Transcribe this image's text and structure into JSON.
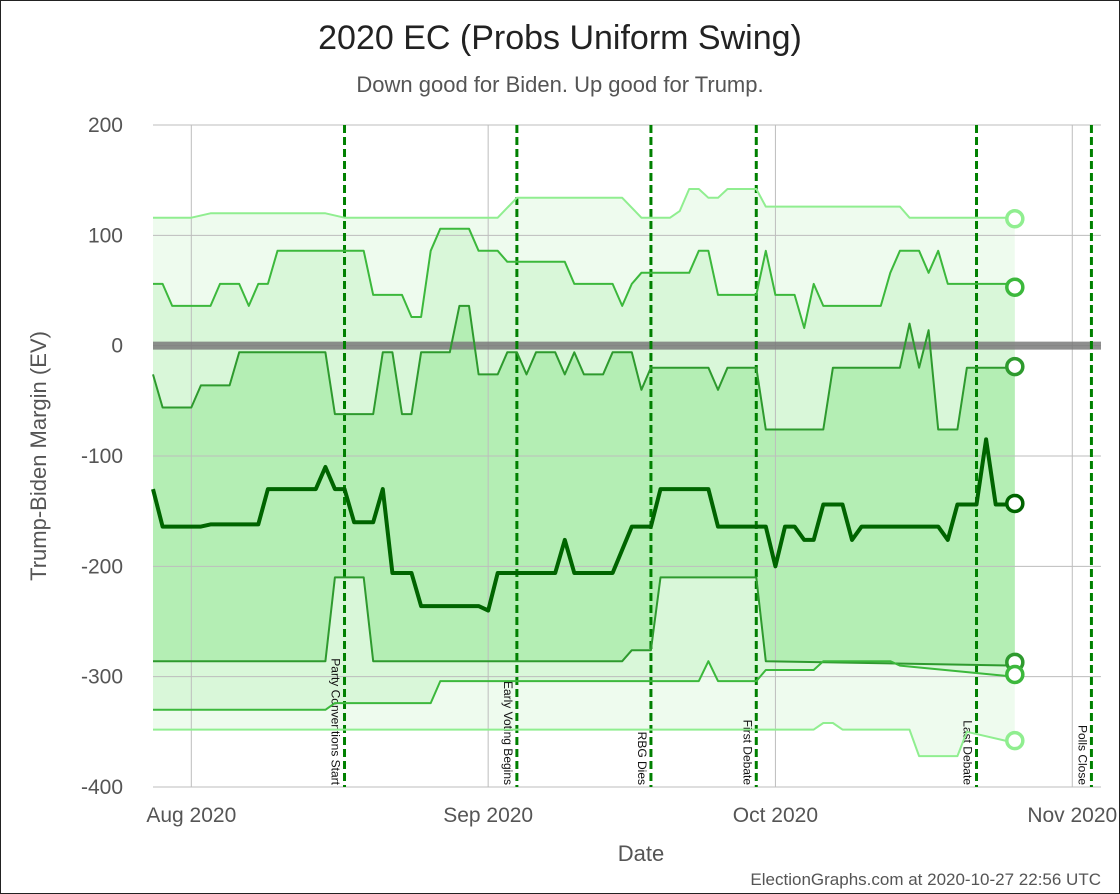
{
  "chart_data": {
    "type": "line",
    "title": "2020 EC (Probs Uniform Swing)",
    "subtitle": "Down good for Biden. Up good for Trump.",
    "xlabel": "Date",
    "ylabel": "Trump-Biden Margin (EV)",
    "xlim": [
      "2020-07-28",
      "2020-11-04"
    ],
    "ylim": [
      -400,
      200
    ],
    "x_ticks": [
      {
        "date": "2020-08-01",
        "label": "Aug 2020"
      },
      {
        "date": "2020-09-01",
        "label": "Sep 2020"
      },
      {
        "date": "2020-10-01",
        "label": "Oct 2020"
      },
      {
        "date": "2020-11-01",
        "label": "Nov 2020"
      }
    ],
    "y_ticks": [
      200,
      100,
      0,
      -100,
      -200,
      -300,
      -400
    ],
    "grid": true,
    "zero_line": 0,
    "events": [
      {
        "date": "2020-08-17",
        "label": "Party Conventions Start"
      },
      {
        "date": "2020-09-04",
        "label": "Early Voting Begins"
      },
      {
        "date": "2020-09-18",
        "label": "RBG Dies"
      },
      {
        "date": "2020-09-29",
        "label": "First Debate"
      },
      {
        "date": "2020-10-22",
        "label": "Last Debate"
      },
      {
        "date": "2020-11-03",
        "label": "Polls Close"
      }
    ],
    "series": [
      {
        "key": "max",
        "color": "#90ee90",
        "points": [
          [
            "2020-07-28",
            116
          ],
          [
            "2020-08-01",
            116
          ],
          [
            "2020-08-03",
            120
          ],
          [
            "2020-08-15",
            120
          ],
          [
            "2020-08-17",
            116
          ],
          [
            "2020-09-02",
            116
          ],
          [
            "2020-09-04",
            134
          ],
          [
            "2020-09-15",
            134
          ],
          [
            "2020-09-17",
            116
          ],
          [
            "2020-09-20",
            116
          ],
          [
            "2020-09-21",
            122
          ],
          [
            "2020-09-22",
            142
          ],
          [
            "2020-09-23",
            142
          ],
          [
            "2020-09-24",
            134
          ],
          [
            "2020-09-25",
            134
          ],
          [
            "2020-09-26",
            142
          ],
          [
            "2020-09-29",
            142
          ],
          [
            "2020-09-30",
            126
          ],
          [
            "2020-10-14",
            126
          ],
          [
            "2020-10-15",
            116
          ],
          [
            "2020-10-26",
            116
          ]
        ]
      },
      {
        "key": "upper",
        "color": "#3cb83c",
        "points": [
          [
            "2020-07-28",
            56
          ],
          [
            "2020-07-29",
            56
          ],
          [
            "2020-07-30",
            36
          ],
          [
            "2020-08-03",
            36
          ],
          [
            "2020-08-04",
            56
          ],
          [
            "2020-08-06",
            56
          ],
          [
            "2020-08-07",
            36
          ],
          [
            "2020-08-08",
            56
          ],
          [
            "2020-08-09",
            56
          ],
          [
            "2020-08-10",
            86
          ],
          [
            "2020-08-19",
            86
          ],
          [
            "2020-08-20",
            46
          ],
          [
            "2020-08-23",
            46
          ],
          [
            "2020-08-24",
            26
          ],
          [
            "2020-08-25",
            26
          ],
          [
            "2020-08-26",
            86
          ],
          [
            "2020-08-27",
            106
          ],
          [
            "2020-08-30",
            106
          ],
          [
            "2020-08-31",
            86
          ],
          [
            "2020-09-02",
            86
          ],
          [
            "2020-09-03",
            76
          ],
          [
            "2020-09-09",
            76
          ],
          [
            "2020-09-10",
            56
          ],
          [
            "2020-09-14",
            56
          ],
          [
            "2020-09-15",
            36
          ],
          [
            "2020-09-16",
            56
          ],
          [
            "2020-09-17",
            66
          ],
          [
            "2020-09-22",
            66
          ],
          [
            "2020-09-23",
            86
          ],
          [
            "2020-09-24",
            86
          ],
          [
            "2020-09-25",
            46
          ],
          [
            "2020-09-29",
            46
          ],
          [
            "2020-09-30",
            86
          ],
          [
            "2020-10-01",
            46
          ],
          [
            "2020-10-03",
            46
          ],
          [
            "2020-10-04",
            16
          ],
          [
            "2020-10-05",
            56
          ],
          [
            "2020-10-06",
            36
          ],
          [
            "2020-10-12",
            36
          ],
          [
            "2020-10-13",
            66
          ],
          [
            "2020-10-14",
            86
          ],
          [
            "2020-10-16",
            86
          ],
          [
            "2020-10-17",
            66
          ],
          [
            "2020-10-18",
            86
          ],
          [
            "2020-10-19",
            56
          ],
          [
            "2020-10-26",
            56
          ]
        ]
      },
      {
        "key": "center",
        "color": "#2e9a2e",
        "points": [
          [
            "2020-07-28",
            -26
          ],
          [
            "2020-07-29",
            -56
          ],
          [
            "2020-08-01",
            -56
          ],
          [
            "2020-08-02",
            -36
          ],
          [
            "2020-08-05",
            -36
          ],
          [
            "2020-08-06",
            -6
          ],
          [
            "2020-08-15",
            -6
          ],
          [
            "2020-08-16",
            -62
          ],
          [
            "2020-08-20",
            -62
          ],
          [
            "2020-08-21",
            -6
          ],
          [
            "2020-08-22",
            -6
          ],
          [
            "2020-08-23",
            -62
          ],
          [
            "2020-08-24",
            -62
          ],
          [
            "2020-08-25",
            -6
          ],
          [
            "2020-08-28",
            -6
          ],
          [
            "2020-08-29",
            36
          ],
          [
            "2020-08-30",
            36
          ],
          [
            "2020-08-31",
            -26
          ],
          [
            "2020-09-02",
            -26
          ],
          [
            "2020-09-03",
            -6
          ],
          [
            "2020-09-04",
            -6
          ],
          [
            "2020-09-05",
            -26
          ],
          [
            "2020-09-06",
            -6
          ],
          [
            "2020-09-08",
            -6
          ],
          [
            "2020-09-09",
            -26
          ],
          [
            "2020-09-10",
            -6
          ],
          [
            "2020-09-11",
            -26
          ],
          [
            "2020-09-13",
            -26
          ],
          [
            "2020-09-14",
            -6
          ],
          [
            "2020-09-16",
            -6
          ],
          [
            "2020-09-17",
            -40
          ],
          [
            "2020-09-18",
            -20
          ],
          [
            "2020-09-24",
            -20
          ],
          [
            "2020-09-25",
            -40
          ],
          [
            "2020-09-26",
            -20
          ],
          [
            "2020-09-29",
            -20
          ],
          [
            "2020-09-30",
            -76
          ],
          [
            "2020-10-06",
            -76
          ],
          [
            "2020-10-07",
            -20
          ],
          [
            "2020-10-14",
            -20
          ],
          [
            "2020-10-15",
            20
          ],
          [
            "2020-10-16",
            -20
          ],
          [
            "2020-10-17",
            14
          ],
          [
            "2020-10-18",
            -76
          ],
          [
            "2020-10-20",
            -76
          ],
          [
            "2020-10-21",
            -20
          ],
          [
            "2020-10-26",
            -20
          ]
        ]
      },
      {
        "key": "median",
        "color": "#006400",
        "points": [
          [
            "2020-07-28",
            -130
          ],
          [
            "2020-07-29",
            -164
          ],
          [
            "2020-08-02",
            -164
          ],
          [
            "2020-08-03",
            -162
          ],
          [
            "2020-08-08",
            -162
          ],
          [
            "2020-08-09",
            -130
          ],
          [
            "2020-08-14",
            -130
          ],
          [
            "2020-08-15",
            -110
          ],
          [
            "2020-08-16",
            -130
          ],
          [
            "2020-08-17",
            -130
          ],
          [
            "2020-08-18",
            -160
          ],
          [
            "2020-08-20",
            -160
          ],
          [
            "2020-08-21",
            -130
          ],
          [
            "2020-08-22",
            -206
          ],
          [
            "2020-08-24",
            -206
          ],
          [
            "2020-08-25",
            -236
          ],
          [
            "2020-08-31",
            -236
          ],
          [
            "2020-09-01",
            -240
          ],
          [
            "2020-09-02",
            -206
          ],
          [
            "2020-09-08",
            -206
          ],
          [
            "2020-09-09",
            -176
          ],
          [
            "2020-09-10",
            -206
          ],
          [
            "2020-09-12",
            -206
          ],
          [
            "2020-09-14",
            -206
          ],
          [
            "2020-09-16",
            -164
          ],
          [
            "2020-09-18",
            -164
          ],
          [
            "2020-09-19",
            -130
          ],
          [
            "2020-09-24",
            -130
          ],
          [
            "2020-09-25",
            -164
          ],
          [
            "2020-09-30",
            -164
          ],
          [
            "2020-10-01",
            -200
          ],
          [
            "2020-10-02",
            -164
          ],
          [
            "2020-10-03",
            -164
          ],
          [
            "2020-10-04",
            -176
          ],
          [
            "2020-10-05",
            -176
          ],
          [
            "2020-10-06",
            -144
          ],
          [
            "2020-10-08",
            -144
          ],
          [
            "2020-10-09",
            -176
          ],
          [
            "2020-10-10",
            -164
          ],
          [
            "2020-10-18",
            -164
          ],
          [
            "2020-10-19",
            -176
          ],
          [
            "2020-10-20",
            -144
          ],
          [
            "2020-10-22",
            -144
          ],
          [
            "2020-10-23",
            -85
          ],
          [
            "2020-10-24",
            -144
          ],
          [
            "2020-10-26",
            -144
          ]
        ]
      },
      {
        "key": "center_low",
        "color": "#2e9a2e",
        "points": [
          [
            "2020-07-28",
            -286
          ],
          [
            "2020-08-15",
            -286
          ],
          [
            "2020-08-16",
            -210
          ],
          [
            "2020-08-19",
            -210
          ],
          [
            "2020-08-20",
            -286
          ],
          [
            "2020-09-15",
            -286
          ],
          [
            "2020-09-16",
            -276
          ],
          [
            "2020-09-18",
            -276
          ],
          [
            "2020-09-19",
            -210
          ],
          [
            "2020-09-29",
            -210
          ],
          [
            "2020-09-30",
            -286
          ],
          [
            "2020-10-26",
            -290
          ]
        ]
      },
      {
        "key": "lower",
        "color": "#3cb83c",
        "points": [
          [
            "2020-07-28",
            -330
          ],
          [
            "2020-08-15",
            -330
          ],
          [
            "2020-08-16",
            -324
          ],
          [
            "2020-08-26",
            -324
          ],
          [
            "2020-08-27",
            -304
          ],
          [
            "2020-09-23",
            -304
          ],
          [
            "2020-09-24",
            -286
          ],
          [
            "2020-09-25",
            -304
          ],
          [
            "2020-09-29",
            -304
          ],
          [
            "2020-09-30",
            -294
          ],
          [
            "2020-10-05",
            -294
          ],
          [
            "2020-10-06",
            -286
          ],
          [
            "2020-10-13",
            -286
          ],
          [
            "2020-10-14",
            -290
          ],
          [
            "2020-10-26",
            -300
          ]
        ]
      },
      {
        "key": "min",
        "color": "#90ee90",
        "points": [
          [
            "2020-07-28",
            -348
          ],
          [
            "2020-10-05",
            -348
          ],
          [
            "2020-10-06",
            -342
          ],
          [
            "2020-10-07",
            -342
          ],
          [
            "2020-10-08",
            -348
          ],
          [
            "2020-10-15",
            -348
          ],
          [
            "2020-10-16",
            -372
          ],
          [
            "2020-10-20",
            -372
          ],
          [
            "2020-10-21",
            -350
          ],
          [
            "2020-10-26",
            -360
          ]
        ]
      }
    ],
    "end_markers": [
      {
        "series": "max",
        "value": 115
      },
      {
        "series": "upper",
        "value": 53
      },
      {
        "series": "center",
        "value": -19
      },
      {
        "series": "median",
        "value": -143
      },
      {
        "series": "center_low",
        "value": -287
      },
      {
        "series": "lower",
        "value": -298
      },
      {
        "series": "min",
        "value": -358
      }
    ]
  },
  "footer": {
    "credit": "ElectionGraphs.com at 2020-10-27 22:56 UTC"
  },
  "colors": {
    "band_outer": "#eefbee",
    "band_middle": "#d9f7d9",
    "band_inner": "#b4eeb4",
    "event_line": "#008000",
    "zero_line": "#7a7a7a",
    "grid": "#bdbdbd"
  }
}
